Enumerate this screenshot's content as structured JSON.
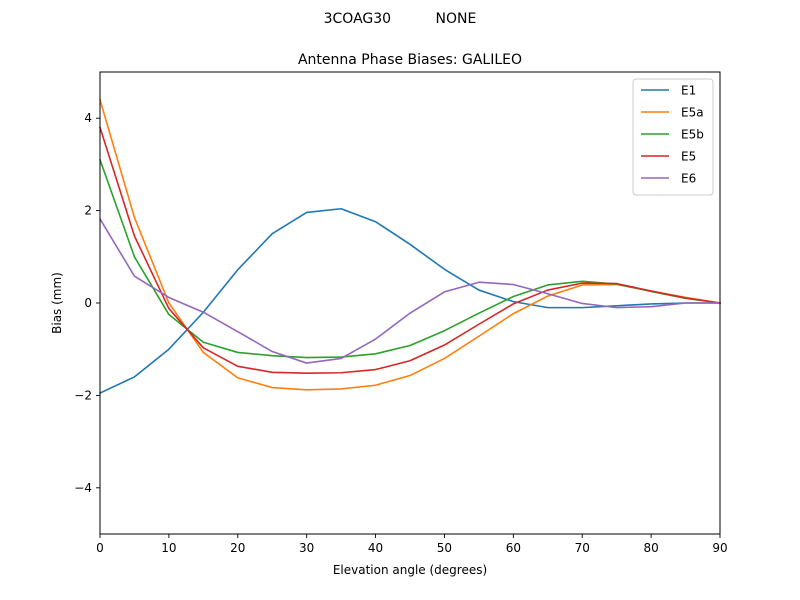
{
  "suptitle": "3COAG30          NONE",
  "chart_data": {
    "type": "line",
    "title": "Antenna Phase Biases: GALILEO",
    "xlabel": "Elevation angle (degrees)",
    "ylabel": "Bias (mm)",
    "xlim": [
      0,
      90
    ],
    "ylim": [
      -5,
      5
    ],
    "xticks": [
      0,
      10,
      20,
      30,
      40,
      50,
      60,
      70,
      80,
      90
    ],
    "yticks": [
      -4,
      -2,
      0,
      2,
      4
    ],
    "ytick_labels": [
      "−4",
      "−2",
      "0",
      "2",
      "4"
    ],
    "grid": false,
    "legend_position": "top-right",
    "x": [
      0,
      5,
      10,
      15,
      20,
      25,
      30,
      35,
      40,
      45,
      50,
      55,
      60,
      65,
      70,
      75,
      80,
      85,
      90
    ],
    "series": [
      {
        "name": "E1",
        "color": "#1f77b4",
        "values": [
          -1.95,
          -1.6,
          -1.0,
          -0.2,
          0.72,
          1.5,
          1.96,
          2.04,
          1.76,
          1.27,
          0.73,
          0.28,
          0.03,
          -0.1,
          -0.1,
          -0.06,
          -0.02,
          0.0,
          0.0
        ]
      },
      {
        "name": "E5a",
        "color": "#ff7f0e",
        "values": [
          4.4,
          1.85,
          0.0,
          -1.07,
          -1.62,
          -1.83,
          -1.88,
          -1.86,
          -1.78,
          -1.57,
          -1.2,
          -0.72,
          -0.23,
          0.15,
          0.39,
          0.4,
          0.26,
          0.12,
          0.0
        ]
      },
      {
        "name": "E5b",
        "color": "#2ca02c",
        "values": [
          3.1,
          1.0,
          -0.25,
          -0.85,
          -1.07,
          -1.14,
          -1.18,
          -1.17,
          -1.1,
          -0.92,
          -0.6,
          -0.22,
          0.14,
          0.39,
          0.47,
          0.41,
          0.25,
          0.1,
          0.0
        ]
      },
      {
        "name": "E5",
        "color": "#d62728",
        "values": [
          3.8,
          1.45,
          -0.12,
          -0.97,
          -1.37,
          -1.5,
          -1.52,
          -1.51,
          -1.44,
          -1.25,
          -0.91,
          -0.46,
          -0.02,
          0.28,
          0.43,
          0.42,
          0.26,
          0.11,
          0.0
        ]
      },
      {
        "name": "E6",
        "color": "#9467bd",
        "values": [
          1.82,
          0.58,
          0.12,
          -0.2,
          -0.62,
          -1.05,
          -1.3,
          -1.2,
          -0.78,
          -0.22,
          0.24,
          0.45,
          0.4,
          0.2,
          -0.01,
          -0.1,
          -0.08,
          0.0,
          0.0
        ]
      }
    ]
  }
}
